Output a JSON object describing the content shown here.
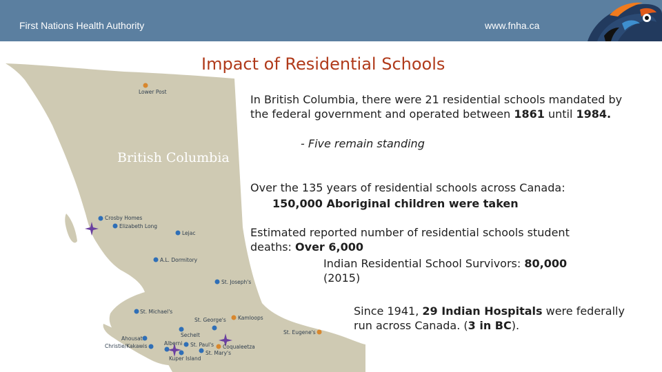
{
  "header": {
    "org_name": "First Nations Health Authority",
    "url": "www.fnha.ca"
  },
  "colors": {
    "header_bar": "#5b7fa0",
    "title": "#b03a1a",
    "land": "#cfcab3",
    "school_marker": "#2f6fb7",
    "hospital_marker": "#d8872e",
    "survivor_star": "#6a3fa0"
  },
  "title": "Impact of Residential Schools",
  "body": {
    "p1_a": "In British Columbia, there were 21 residential schools mandated by the federal government and operated between ",
    "p1_year1": "1861",
    "p1_b": " until ",
    "p1_year2": "1984.",
    "p1_sub": "- Five remain standing",
    "p2": "Over the 135 years of residential schools across Canada:",
    "p2_sub": "150,000 Aboriginal children were taken",
    "p3_a": "Estimated reported number of residential schools student deaths: ",
    "p3_b": "Over 6,000",
    "p3_sub_a": "Indian Residential School Survivors: ",
    "p3_sub_b": "80,000",
    "p3_sub_c": " (2015)",
    "p4_a": "Since 1941, ",
    "p4_b": "29 Indian Hospitals",
    "p4_c": " were federally run across Canada. (",
    "p4_d": "3 in BC",
    "p4_e": ")."
  },
  "map": {
    "region_label": "British Columbia",
    "places": {
      "lower_post": "Lower Post",
      "crosby_homes": "Crosby Homes",
      "elizabeth_long": "Elizabeth Long",
      "lejac": "Lejac",
      "al_dormitory": "A.L. Dormitory",
      "st_josephs": "St. Joseph's",
      "st_michaels": "St. Michael's",
      "st_georges": "St. George's",
      "kamloops": "Kamloops",
      "st_eugenes": "St. Eugene's",
      "sechelt": "Sechelt",
      "ahousat": "Ahousat",
      "christie_kakawis": "Christie/Kakawis",
      "alberni": "Alberni",
      "st_pauls": "St. Paul's",
      "coqualeetza": "Coqualeetza",
      "st_marys": "St. Mary's",
      "kuper_island": "Kuper Island"
    }
  }
}
